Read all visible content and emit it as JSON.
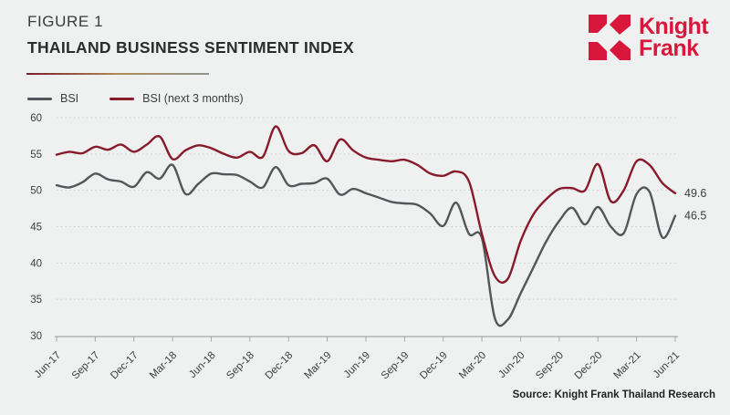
{
  "header": {
    "figure_label": "FIGURE 1",
    "title": "THAILAND BUSINESS SENTIMENT INDEX"
  },
  "logo": {
    "line1": "Knight",
    "line2": "Frank"
  },
  "legend": [
    {
      "label": "BSI",
      "color": "#54565a"
    },
    {
      "label": "BSI (next 3 months)",
      "color": "#871b2c"
    }
  ],
  "source": "Source: Knight Frank Thailand Research",
  "colors": {
    "background": "#eff1f0",
    "brand_red": "#d8173c",
    "line_gray": "#54565a",
    "line_dark_red": "#871b2c",
    "gridline": "#cbcecd",
    "axis": "#a6a9a8",
    "tick_text": "#3c3d3d",
    "divider_gradient": [
      "#7d1a2b",
      "#b08a52",
      "#8f9392"
    ]
  },
  "chart_data": {
    "type": "line",
    "title": "Thailand Business Sentiment Index",
    "x_unit": "monthly, Jun-2017 to Jun-2021 (49 points)",
    "x_tick_labels": [
      "Jun-17",
      "Sep-17",
      "Dec-17",
      "Mar-18",
      "Jun-18",
      "Sep-18",
      "Dec-18",
      "Mar-19",
      "Jun-19",
      "Sep-19",
      "Dec-19",
      "Mar-20",
      "Jun-20",
      "Sep-20",
      "Dec-20",
      "Mar-21",
      "Jun-21"
    ],
    "y_ticks": [
      30,
      35,
      40,
      45,
      50,
      55,
      60
    ],
    "ylim": [
      30,
      60
    ],
    "grid": "dotted horizontal",
    "legend_position": "top-left",
    "series": [
      {
        "name": "BSI",
        "color": "#54565a",
        "end_label": "46.5",
        "values": [
          50.7,
          50.4,
          51.1,
          52.3,
          51.5,
          51.2,
          50.5,
          52.5,
          51.6,
          53.5,
          49.5,
          50.9,
          52.3,
          52.2,
          52.1,
          51.2,
          50.4,
          53.2,
          50.7,
          50.9,
          51.0,
          51.6,
          49.4,
          50.2,
          49.6,
          49.0,
          48.4,
          48.2,
          48.0,
          46.8,
          45.1,
          48.3,
          44.0,
          43.4,
          32.4,
          32.2,
          35.8,
          39.4,
          43.0,
          45.8,
          47.6,
          45.3,
          47.7,
          45.0,
          44.1,
          49.5,
          49.8,
          43.5,
          46.5
        ]
      },
      {
        "name": "BSI (next 3 months)",
        "color": "#871b2c",
        "end_label": "49.6",
        "values": [
          54.9,
          55.3,
          55.1,
          56.0,
          55.6,
          56.3,
          55.3,
          56.3,
          57.4,
          54.3,
          55.5,
          56.2,
          55.8,
          55.0,
          54.5,
          55.3,
          54.6,
          58.8,
          55.4,
          55.1,
          56.2,
          54.0,
          57.0,
          55.5,
          54.5,
          54.2,
          54.0,
          54.2,
          53.5,
          52.3,
          52.0,
          52.6,
          51.2,
          44.0,
          38.2,
          37.8,
          43.0,
          46.7,
          48.8,
          50.2,
          50.3,
          50.0,
          53.6,
          48.5,
          50.0,
          54.0,
          53.5,
          51.0,
          49.6
        ]
      }
    ]
  }
}
